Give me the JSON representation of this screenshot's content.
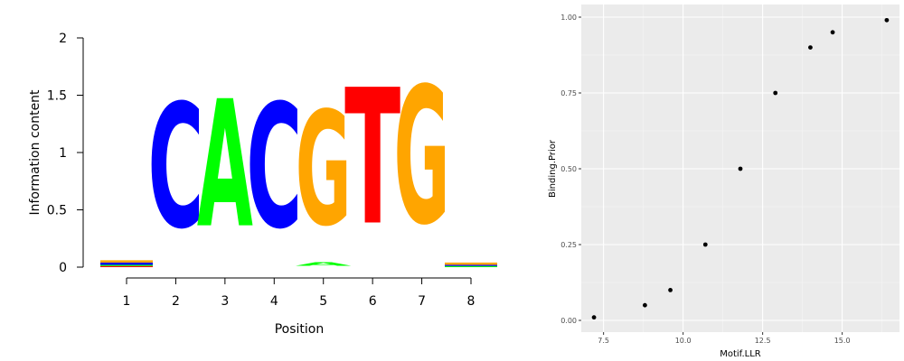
{
  "chart_data": [
    {
      "type": "sequence-logo",
      "title": "",
      "xlabel": "Position",
      "ylabel": "Information content",
      "x_ticks": [
        "1",
        "2",
        "3",
        "4",
        "5",
        "6",
        "7",
        "8"
      ],
      "y_ticks": [
        "0",
        "0.5",
        "1",
        "1.5",
        "2"
      ],
      "ylim": [
        0,
        2
      ],
      "colors": {
        "A": "#00ff00",
        "C": "#0000ff",
        "G": "#ffa500",
        "T": "#ff0000"
      },
      "positions": [
        {
          "x": 1.0,
          "letters": [
            {
              "base": "C",
              "height": 0.02
            },
            {
              "base": "G",
              "height": 0.02
            },
            {
              "base": "T",
              "height": 0.01
            },
            {
              "base": "A",
              "height": 0.01
            }
          ]
        },
        {
          "x": 2.0,
          "letters": [
            {
              "base": "C",
              "height": 1.74
            }
          ]
        },
        {
          "x": 3.0,
          "letters": [
            {
              "base": "A",
              "height": 1.78
            }
          ]
        },
        {
          "x": 4.0,
          "letters": [
            {
              "base": "C",
              "height": 1.74
            }
          ]
        },
        {
          "x": 5.0,
          "letters": [
            {
              "base": "G",
              "height": 1.6
            },
            {
              "base": "A",
              "height": 0.05
            }
          ]
        },
        {
          "x": 6.0,
          "letters": [
            {
              "base": "T",
              "height": 1.9
            }
          ]
        },
        {
          "x": 7.0,
          "letters": [
            {
              "base": "G",
              "height": 1.92
            }
          ]
        },
        {
          "x": 8.0,
          "letters": [
            {
              "base": "G",
              "height": 0.02
            },
            {
              "base": "A",
              "height": 0.01
            },
            {
              "base": "C",
              "height": 0.01
            }
          ]
        }
      ]
    },
    {
      "type": "scatter",
      "title": "",
      "xlabel": "Motif.LLR",
      "ylabel": "Binding.Prior",
      "x_ticks": [
        "7.5",
        "10.0",
        "12.5",
        "15.0"
      ],
      "y_ticks": [
        "0.00",
        "0.25",
        "0.50",
        "0.75",
        "1.00"
      ],
      "xlim": [
        6.8,
        16.8
      ],
      "ylim": [
        0,
        1
      ],
      "grid": true,
      "points": [
        {
          "x": 7.2,
          "y": 0.01
        },
        {
          "x": 8.8,
          "y": 0.05
        },
        {
          "x": 9.6,
          "y": 0.1
        },
        {
          "x": 10.7,
          "y": 0.25
        },
        {
          "x": 11.8,
          "y": 0.5
        },
        {
          "x": 12.9,
          "y": 0.75
        },
        {
          "x": 14.0,
          "y": 0.9
        },
        {
          "x": 14.7,
          "y": 0.95
        },
        {
          "x": 16.4,
          "y": 0.99
        }
      ]
    }
  ]
}
